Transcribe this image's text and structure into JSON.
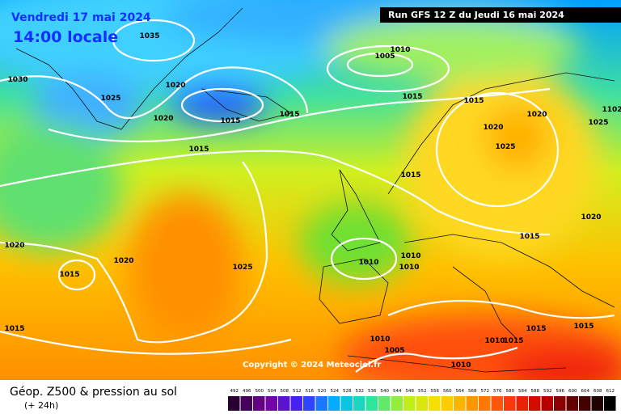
{
  "header": {
    "date": "Vendredi 17 mai 2024",
    "time": "14:00 locale",
    "run": "Run GFS 12 Z du Jeudi 16 mai 2024"
  },
  "copyright": "Copyright © 2024 Meteociel.fr",
  "footer": {
    "title": "Géop. Z500 & pression au sol",
    "subtitle": "(+ 24h)"
  },
  "color_scale": [
    492,
    496,
    500,
    504,
    508,
    512,
    516,
    520,
    524,
    528,
    532,
    536,
    540,
    544,
    548,
    552,
    556,
    560,
    564,
    568,
    572,
    576,
    580,
    584,
    588,
    592,
    596,
    600,
    604,
    608,
    612
  ],
  "isobar_labels": [
    1035,
    1030,
    1025,
    1020,
    1020,
    1015,
    1015,
    1005,
    1010,
    1015,
    1015,
    1020,
    1020,
    1025,
    1025,
    1102,
    1015,
    1015,
    1020,
    1015,
    1020,
    1020,
    1015,
    1025,
    1010,
    1010,
    1010,
    1015,
    1015,
    1015,
    1010,
    1005,
    1010,
    1015,
    1010
  ]
}
